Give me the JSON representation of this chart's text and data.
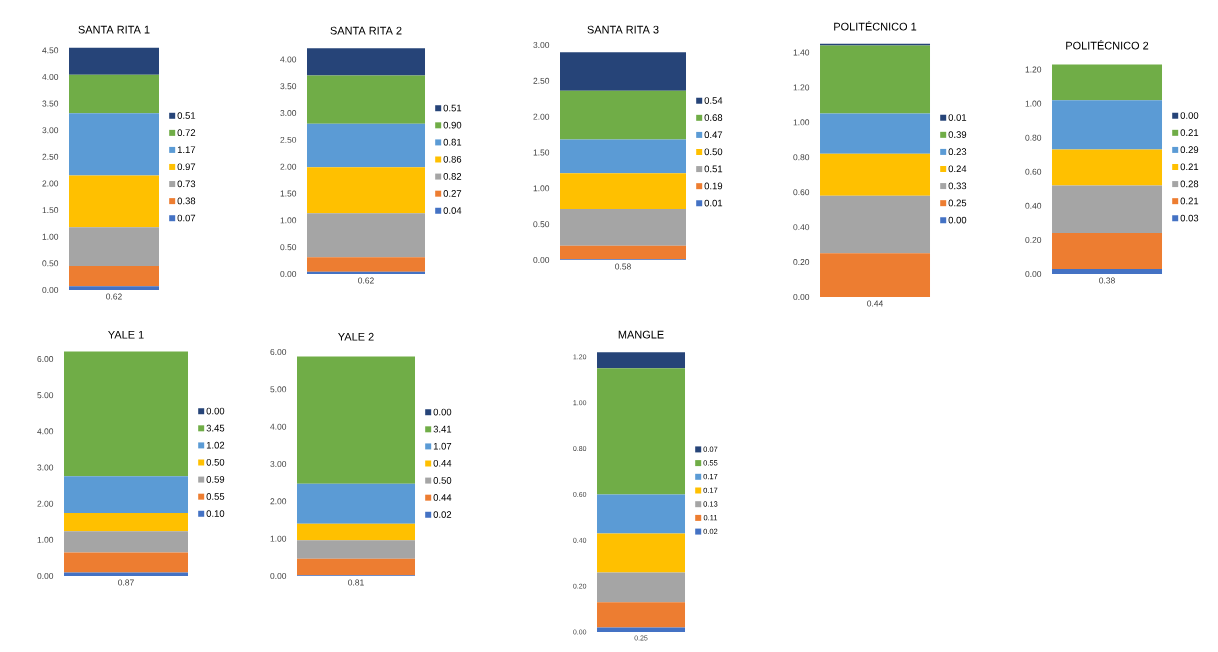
{
  "chart_data": [
    {
      "type": "bar",
      "stacked": true,
      "legend": "right",
      "title": "SANTA RITA 1",
      "categories": [
        "0.62"
      ],
      "ylim": [
        0,
        4.6
      ],
      "yticks": [
        {
          "value": 0,
          "label": "0.00"
        },
        {
          "value": 0.5,
          "label": "0.50"
        },
        {
          "value": 1,
          "label": "1.00"
        },
        {
          "value": 1.5,
          "label": "1.50"
        },
        {
          "value": 2,
          "label": "2.00"
        },
        {
          "value": 2.5,
          "label": "2.50"
        },
        {
          "value": 3,
          "label": "3.00"
        },
        {
          "value": 3.5,
          "label": "3.50"
        },
        {
          "value": 4,
          "label": "4.00"
        },
        {
          "value": 4.5,
          "label": "4.50"
        }
      ],
      "series": [
        {
          "name": "0.07",
          "color": "#4472c4",
          "values": [
            0.07
          ]
        },
        {
          "name": "0.38",
          "color": "#ed7d31",
          "values": [
            0.38
          ]
        },
        {
          "name": "0.73",
          "color": "#a5a5a5",
          "values": [
            0.73
          ]
        },
        {
          "name": "0.97",
          "color": "#ffc000",
          "values": [
            0.97
          ]
        },
        {
          "name": "1.17",
          "color": "#5b9bd5",
          "values": [
            1.17
          ]
        },
        {
          "name": "0.72",
          "color": "#70ad47",
          "values": [
            0.72
          ]
        },
        {
          "name": "0.51",
          "color": "#264478",
          "values": [
            0.51
          ]
        }
      ]
    },
    {
      "type": "bar",
      "stacked": true,
      "legend": "right",
      "title": "SANTA RITA 2",
      "categories": [
        "0.62"
      ],
      "ylim": [
        0,
        4.25
      ],
      "yticks": [
        {
          "value": 0,
          "label": "0.00"
        },
        {
          "value": 0.5,
          "label": "0.50"
        },
        {
          "value": 1,
          "label": "1.00"
        },
        {
          "value": 1.5,
          "label": "1.50"
        },
        {
          "value": 2,
          "label": "2.00"
        },
        {
          "value": 2.5,
          "label": "2.50"
        },
        {
          "value": 3,
          "label": "3.00"
        },
        {
          "value": 3.5,
          "label": "3.50"
        },
        {
          "value": 4,
          "label": "4.00"
        }
      ],
      "series": [
        {
          "name": "0.04",
          "color": "#4472c4",
          "values": [
            0.04
          ]
        },
        {
          "name": "0.27",
          "color": "#ed7d31",
          "values": [
            0.27
          ]
        },
        {
          "name": "0.82",
          "color": "#a5a5a5",
          "values": [
            0.82
          ]
        },
        {
          "name": "0.86",
          "color": "#ffc000",
          "values": [
            0.86
          ]
        },
        {
          "name": "0.81",
          "color": "#5b9bd5",
          "values": [
            0.81
          ]
        },
        {
          "name": "0.90",
          "color": "#70ad47",
          "values": [
            0.9
          ]
        },
        {
          "name": "0.51",
          "color": "#264478",
          "values": [
            0.51
          ]
        }
      ]
    },
    {
      "type": "bar",
      "stacked": true,
      "legend": "right",
      "title": "SANTA RITA 3",
      "categories": [
        "0.58"
      ],
      "ylim": [
        0,
        3
      ],
      "yticks": [
        {
          "value": 0,
          "label": "0.00"
        },
        {
          "value": 0.5,
          "label": "0.50"
        },
        {
          "value": 1,
          "label": "1.00"
        },
        {
          "value": 1.5,
          "label": "1.50"
        },
        {
          "value": 2,
          "label": "2.00"
        },
        {
          "value": 2.5,
          "label": "2.50"
        },
        {
          "value": 3,
          "label": "3.00"
        }
      ],
      "series": [
        {
          "name": "0.01",
          "color": "#4472c4",
          "values": [
            0.01
          ]
        },
        {
          "name": "0.19",
          "color": "#ed7d31",
          "values": [
            0.19
          ]
        },
        {
          "name": "0.51",
          "color": "#a5a5a5",
          "values": [
            0.51
          ]
        },
        {
          "name": "0.50",
          "color": "#ffc000",
          "values": [
            0.5
          ]
        },
        {
          "name": "0.47",
          "color": "#5b9bd5",
          "values": [
            0.47
          ]
        },
        {
          "name": "0.68",
          "color": "#70ad47",
          "values": [
            0.68
          ]
        },
        {
          "name": "0.54",
          "color": "#264478",
          "values": [
            0.54
          ]
        }
      ]
    },
    {
      "type": "bar",
      "stacked": true,
      "legend": "right",
      "title": "POLITÉCNICO 1",
      "categories": [
        "0.44"
      ],
      "ylim": [
        0,
        1.46
      ],
      "yticks": [
        {
          "value": 0,
          "label": "0.00"
        },
        {
          "value": 0.2,
          "label": "0.20"
        },
        {
          "value": 0.4,
          "label": "0.40"
        },
        {
          "value": 0.6,
          "label": "0.60"
        },
        {
          "value": 0.8,
          "label": "0.80"
        },
        {
          "value": 1,
          "label": "1.00"
        },
        {
          "value": 1.2,
          "label": "1.20"
        },
        {
          "value": 1.4,
          "label": "1.40"
        }
      ],
      "series": [
        {
          "name": "0.00",
          "color": "#4472c4",
          "values": [
            0
          ]
        },
        {
          "name": "0.25",
          "color": "#ed7d31",
          "values": [
            0.25
          ]
        },
        {
          "name": "0.33",
          "color": "#a5a5a5",
          "values": [
            0.33
          ]
        },
        {
          "name": "0.24",
          "color": "#ffc000",
          "values": [
            0.24
          ]
        },
        {
          "name": "0.23",
          "color": "#5b9bd5",
          "values": [
            0.23
          ]
        },
        {
          "name": "0.39",
          "color": "#70ad47",
          "values": [
            0.39
          ]
        },
        {
          "name": "0.01",
          "color": "#264478",
          "values": [
            0.01
          ]
        }
      ]
    },
    {
      "type": "bar",
      "stacked": true,
      "legend": "right",
      "title": "POLITÉCNICO 2",
      "categories": [
        "0.38"
      ],
      "ylim": [
        0,
        1.25
      ],
      "yticks": [
        {
          "value": 0,
          "label": "0.00"
        },
        {
          "value": 0.2,
          "label": "0.20"
        },
        {
          "value": 0.4,
          "label": "0.40"
        },
        {
          "value": 0.6,
          "label": "0.60"
        },
        {
          "value": 0.8,
          "label": "0.80"
        },
        {
          "value": 1,
          "label": "1.00"
        },
        {
          "value": 1.2,
          "label": "1.20"
        }
      ],
      "series": [
        {
          "name": "0.03",
          "color": "#4472c4",
          "values": [
            0.03
          ]
        },
        {
          "name": "0.21",
          "color": "#ed7d31",
          "values": [
            0.21
          ]
        },
        {
          "name": "0.28",
          "color": "#a5a5a5",
          "values": [
            0.28
          ]
        },
        {
          "name": "0.21",
          "color": "#ffc000",
          "values": [
            0.21
          ]
        },
        {
          "name": "0.29",
          "color": "#5b9bd5",
          "values": [
            0.29
          ]
        },
        {
          "name": "0.21",
          "color": "#70ad47",
          "values": [
            0.21
          ]
        },
        {
          "name": "0.00",
          "color": "#264478",
          "values": [
            0
          ]
        }
      ]
    },
    {
      "type": "bar",
      "stacked": true,
      "legend": "right",
      "title": "YALE 1",
      "categories": [
        "0.87"
      ],
      "ylim": [
        0,
        6.25
      ],
      "yticks": [
        {
          "value": 0,
          "label": "0.00"
        },
        {
          "value": 1,
          "label": "1.00"
        },
        {
          "value": 2,
          "label": "2.00"
        },
        {
          "value": 3,
          "label": "3.00"
        },
        {
          "value": 4,
          "label": "4.00"
        },
        {
          "value": 5,
          "label": "5.00"
        },
        {
          "value": 6,
          "label": "6.00"
        }
      ],
      "series": [
        {
          "name": "0.10",
          "color": "#4472c4",
          "values": [
            0.1
          ]
        },
        {
          "name": "0.55",
          "color": "#ed7d31",
          "values": [
            0.55
          ]
        },
        {
          "name": "0.59",
          "color": "#a5a5a5",
          "values": [
            0.59
          ]
        },
        {
          "name": "0.50",
          "color": "#ffc000",
          "values": [
            0.5
          ]
        },
        {
          "name": "1.02",
          "color": "#5b9bd5",
          "values": [
            1.02
          ]
        },
        {
          "name": "3.45",
          "color": "#70ad47",
          "values": [
            3.45
          ]
        },
        {
          "name": "0.00",
          "color": "#264478",
          "values": [
            0
          ]
        }
      ]
    },
    {
      "type": "bar",
      "stacked": true,
      "legend": "right",
      "title": "YALE 2",
      "categories": [
        "0.81"
      ],
      "ylim": [
        0,
        6
      ],
      "yticks": [
        {
          "value": 0,
          "label": "0.00"
        },
        {
          "value": 1,
          "label": "1.00"
        },
        {
          "value": 2,
          "label": "2.00"
        },
        {
          "value": 3,
          "label": "3.00"
        },
        {
          "value": 4,
          "label": "4.00"
        },
        {
          "value": 5,
          "label": "5.00"
        },
        {
          "value": 6,
          "label": "6.00"
        }
      ],
      "series": [
        {
          "name": "0.02",
          "color": "#4472c4",
          "values": [
            0.02
          ]
        },
        {
          "name": "0.44",
          "color": "#ed7d31",
          "values": [
            0.44
          ]
        },
        {
          "name": "0.50",
          "color": "#a5a5a5",
          "values": [
            0.5
          ]
        },
        {
          "name": "0.44",
          "color": "#ffc000",
          "values": [
            0.44
          ]
        },
        {
          "name": "1.07",
          "color": "#5b9bd5",
          "values": [
            1.07
          ]
        },
        {
          "name": "3.41",
          "color": "#70ad47",
          "values": [
            3.41
          ]
        },
        {
          "name": "0.00",
          "color": "#264478",
          "values": [
            0
          ]
        }
      ]
    },
    {
      "type": "bar",
      "stacked": true,
      "legend": "right",
      "title": "MANGLE",
      "categories": [
        "0.25"
      ],
      "ylim": [
        0,
        1.23
      ],
      "yticks": [
        {
          "value": 0,
          "label": "0.00"
        },
        {
          "value": 0.2,
          "label": "0.20"
        },
        {
          "value": 0.4,
          "label": "0.40"
        },
        {
          "value": 0.6,
          "label": "0.60"
        },
        {
          "value": 0.8,
          "label": "0.80"
        },
        {
          "value": 1,
          "label": "1.00"
        },
        {
          "value": 1.2,
          "label": "1.20"
        }
      ],
      "series": [
        {
          "name": "0.02",
          "color": "#4472c4",
          "values": [
            0.02
          ]
        },
        {
          "name": "0.11",
          "color": "#ed7d31",
          "values": [
            0.11
          ]
        },
        {
          "name": "0.13",
          "color": "#a5a5a5",
          "values": [
            0.13
          ]
        },
        {
          "name": "0.17",
          "color": "#ffc000",
          "values": [
            0.17
          ]
        },
        {
          "name": "0.17",
          "color": "#5b9bd5",
          "values": [
            0.17
          ]
        },
        {
          "name": "0.55",
          "color": "#70ad47",
          "values": [
            0.55
          ]
        },
        {
          "name": "0.07",
          "color": "#264478",
          "values": [
            0.07
          ]
        }
      ]
    }
  ]
}
